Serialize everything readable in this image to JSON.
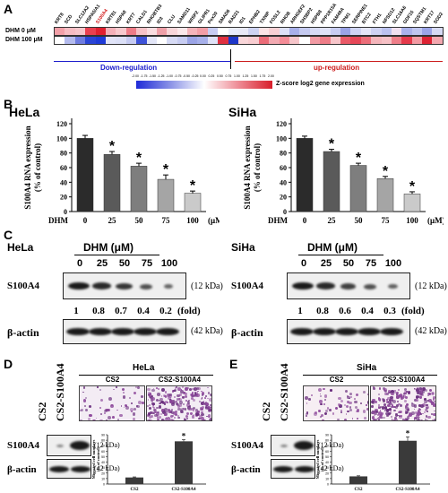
{
  "panels": {
    "A": "A",
    "B": "B",
    "C": "C",
    "D": "D",
    "E": "E"
  },
  "heatmap": {
    "genes": [
      "KRT8",
      "SCD",
      "SLC12A2",
      "HSPA5/A1",
      "S100A4",
      "KRT81",
      "HSPA8",
      "KRT7",
      "CALD1",
      "RHOBTB3",
      "ID3",
      "CLU",
      "SAMD11",
      "WISP2",
      "GLIPR1",
      "Pex30",
      "SMAD6",
      "RAD21",
      "ID1",
      "EPHB2",
      "TXNIP",
      "FOSL2",
      "RHOB",
      "ARHGEF2",
      "SH3BP2",
      "HSPB8",
      "PPP1R15A",
      "FAM49A",
      "TPM1",
      "SERPINE1",
      "BTC2",
      "FTH1",
      "NFSD12",
      "SLC16A6",
      "GDF15",
      "SQSTM1",
      "KRT17",
      "SOD2"
    ],
    "highlight": "S100A4",
    "row_labels": [
      "DHM 0 μM",
      "DHM 100 μM"
    ],
    "row0": [
      "#f2a0a8",
      "#f6bcc2",
      "#f6c5ca",
      "#e84050",
      "#e02030",
      "#f4b0b8",
      "#f7c9cd",
      "#ee7c87",
      "#f6c2c7",
      "#f9dde0",
      "#eea0a8",
      "#f8d6d9",
      "#fbe8ea",
      "#f4b4ba",
      "#f29ea6",
      "#c8cdf3",
      "#ffffff",
      "#e9ecfa",
      "#e8e9f6",
      "#ced3f2",
      "#fbe3e5",
      "#f8d0d4",
      "#dde0f6",
      "#a8b0ea",
      "#c5cbf1",
      "#d7dbf5",
      "#dfe2f7",
      "#c8cdf2",
      "#9aa3e6",
      "#cfd4f3",
      "#e4e6f8",
      "#ced2f3",
      "#bbc2ef",
      "#f0e0f0",
      "#aab2eb",
      "#bfc6f0",
      "#9ba4e7",
      "#d6daf4"
    ],
    "row1": [
      "#ffffff",
      "#b4bbee",
      "#6f7ce0",
      "#2a44d6",
      "#1e3ad8",
      "#e1e4f8",
      "#dce0f7",
      "#c6cbf2",
      "#3d52d8",
      "#e3e6f8",
      "#ffffff",
      "#d7dbf5",
      "#c8cdf2",
      "#9ba4e6",
      "#a7b0ea",
      "#dfe2f7",
      "#e03040",
      "#1e36c8",
      "#f9d6d9",
      "#f8cdd1",
      "#eb6c78",
      "#f3aab2",
      "#f48c97",
      "#f6c5ca",
      "#ffffff",
      "#f29ba4",
      "#ee7d88",
      "#f7c5ca",
      "#ea5a68",
      "#e64858",
      "#ec6e7a",
      "#f4b5bb",
      "#f6c0c5",
      "#ee7e89",
      "#e53a4b",
      "#f29aa3",
      "#dd2233",
      "#f3a7af"
    ],
    "down_label": "Down-regulation",
    "up_label": "up-regulation",
    "scale_label": "Z-score log2 gene expression",
    "scale_ticks": [
      "-2.00",
      "-1.75",
      "-1.50",
      "-1.25",
      "-1.00",
      "-0.75",
      "-0.50",
      "-0.25",
      "0.00",
      "0.25",
      "0.50",
      "0.75",
      "1.00",
      "1.25",
      "1.50",
      "1.75",
      "2.00"
    ]
  },
  "chart_data": [
    {
      "type": "bar",
      "title": "HeLa",
      "categories": [
        "0",
        "25",
        "50",
        "75",
        "100"
      ],
      "values": [
        100,
        78,
        62,
        44,
        25
      ],
      "errors": [
        4,
        4,
        4,
        6,
        3
      ],
      "sig": [
        "",
        "*",
        "*",
        "*",
        "*"
      ],
      "ylabel": "S100A4 RNA expression (% of control)",
      "xlabel_prefix": "DHM",
      "xunit": "(μM)",
      "ylim": [
        0,
        120
      ],
      "yticks": [
        0,
        20,
        40,
        60,
        80,
        100,
        120
      ]
    },
    {
      "type": "bar",
      "title": "SiHa",
      "categories": [
        "0",
        "25",
        "50",
        "75",
        "100"
      ],
      "values": [
        100,
        82,
        63,
        45,
        24
      ],
      "errors": [
        3,
        3,
        3,
        3,
        3
      ],
      "sig": [
        "",
        "*",
        "*",
        "*",
        "*"
      ],
      "ylabel": "S100A4 RNA expression (% of control)",
      "xlabel_prefix": "DHM",
      "xunit": "(μM)",
      "ylim": [
        0,
        120
      ],
      "yticks": [
        0,
        20,
        40,
        60,
        80,
        100,
        120
      ]
    },
    {
      "type": "bar",
      "categories": [
        "CS2",
        "CS2-S100A4"
      ],
      "values": [
        12,
        78
      ],
      "errors": [
        1,
        3
      ],
      "sig": [
        "",
        "*"
      ],
      "ylabel": "Migrated cell numbers (% of control)",
      "ylim": [
        0,
        90
      ],
      "yticks": [
        0,
        10,
        20,
        30,
        40,
        50,
        60,
        70,
        80,
        90
      ]
    },
    {
      "type": "bar",
      "categories": [
        "CS2",
        "CS2-S100A4"
      ],
      "values": [
        14,
        79
      ],
      "errors": [
        1,
        7
      ],
      "sig": [
        "",
        "*"
      ],
      "ylabel": "Migrated cell numbers (% of control)",
      "ylim": [
        0,
        90
      ],
      "yticks": [
        0,
        10,
        20,
        30,
        40,
        50,
        60,
        70,
        80,
        90
      ]
    }
  ],
  "westernC": {
    "hela_label": "HeLa",
    "siha_label": "SiHa",
    "dhm_label": "DHM (μM)",
    "doses": [
      "0",
      "25",
      "50",
      "75",
      "100"
    ],
    "hela_folds": [
      "1",
      "0.8",
      "0.7",
      "0.4",
      "0.2"
    ],
    "siha_folds": [
      "1",
      "0.8",
      "0.6",
      "0.4",
      "0.3"
    ],
    "hela_band_levels": [
      1,
      0.85,
      0.75,
      0.5,
      0.3
    ],
    "siha_band_levels": [
      1,
      0.85,
      0.65,
      0.5,
      0.35
    ],
    "fold_label": "(fold)",
    "protein": "S100A4",
    "actin": "β-actin",
    "kda_s100": "(12 kDa)",
    "kda_actin": "(42 kDa)"
  },
  "panelD": {
    "cell": "HeLa",
    "lanes": [
      "CS2",
      "CS2-S100A4"
    ],
    "protein": "S100A4",
    "actin": "β-actin",
    "kda_s100": "(12 kDa)",
    "kda_actin": "(42 kDa)",
    "micro_labels": [
      "CS2",
      "CS2-S100A4"
    ]
  },
  "panelE": {
    "cell": "SiHa",
    "lanes": [
      "CS2",
      "CS2-S100A4"
    ],
    "protein": "S100A4",
    "actin": "β-actin",
    "kda_s100": "(12 kDa)",
    "kda_actin": "(42 kDa)",
    "micro_labels": [
      "CS2",
      "CS2-S100A4"
    ]
  }
}
